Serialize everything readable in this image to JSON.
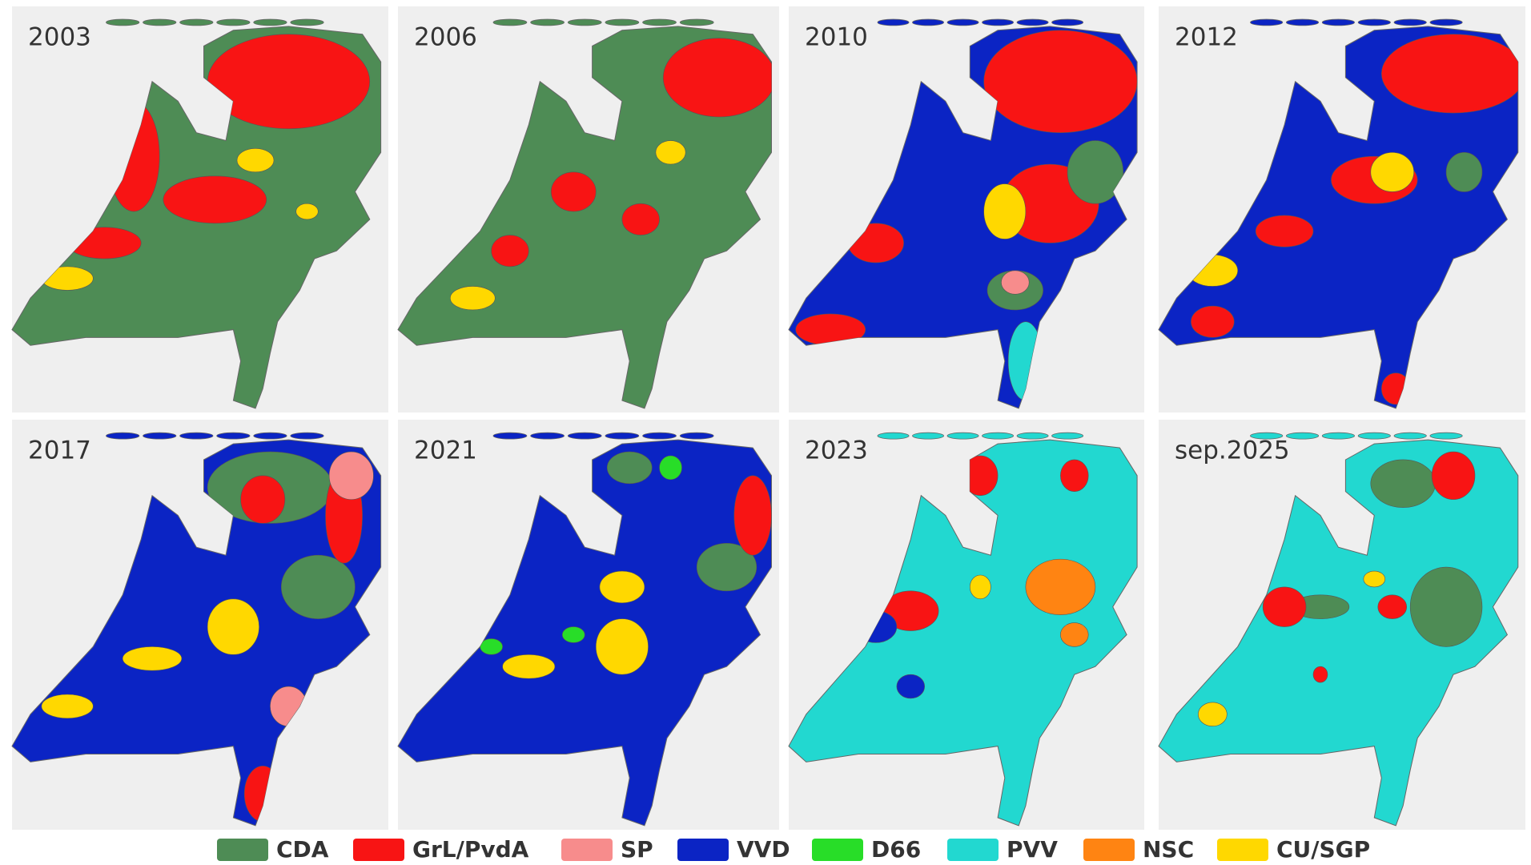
{
  "panels": [
    {
      "label": "2003"
    },
    {
      "label": "2006"
    },
    {
      "label": "2010"
    },
    {
      "label": "2012"
    },
    {
      "label": "2017"
    },
    {
      "label": "2021"
    },
    {
      "label": "2023"
    },
    {
      "label": "sep.2025"
    }
  ],
  "legend": [
    {
      "name": "CDA",
      "color": "#4e8c55"
    },
    {
      "name": "GrL/PvdA",
      "color": "#f81414"
    },
    {
      "name": "SP",
      "color": "#f78c8c"
    },
    {
      "name": "VVD",
      "color": "#0b24c4"
    },
    {
      "name": "D66",
      "color": "#28dd28"
    },
    {
      "name": "PVV",
      "color": "#22d8d0"
    },
    {
      "name": "NSC",
      "color": "#ff8412"
    },
    {
      "name": "CU/SGP",
      "color": "#ffd800"
    }
  ]
}
